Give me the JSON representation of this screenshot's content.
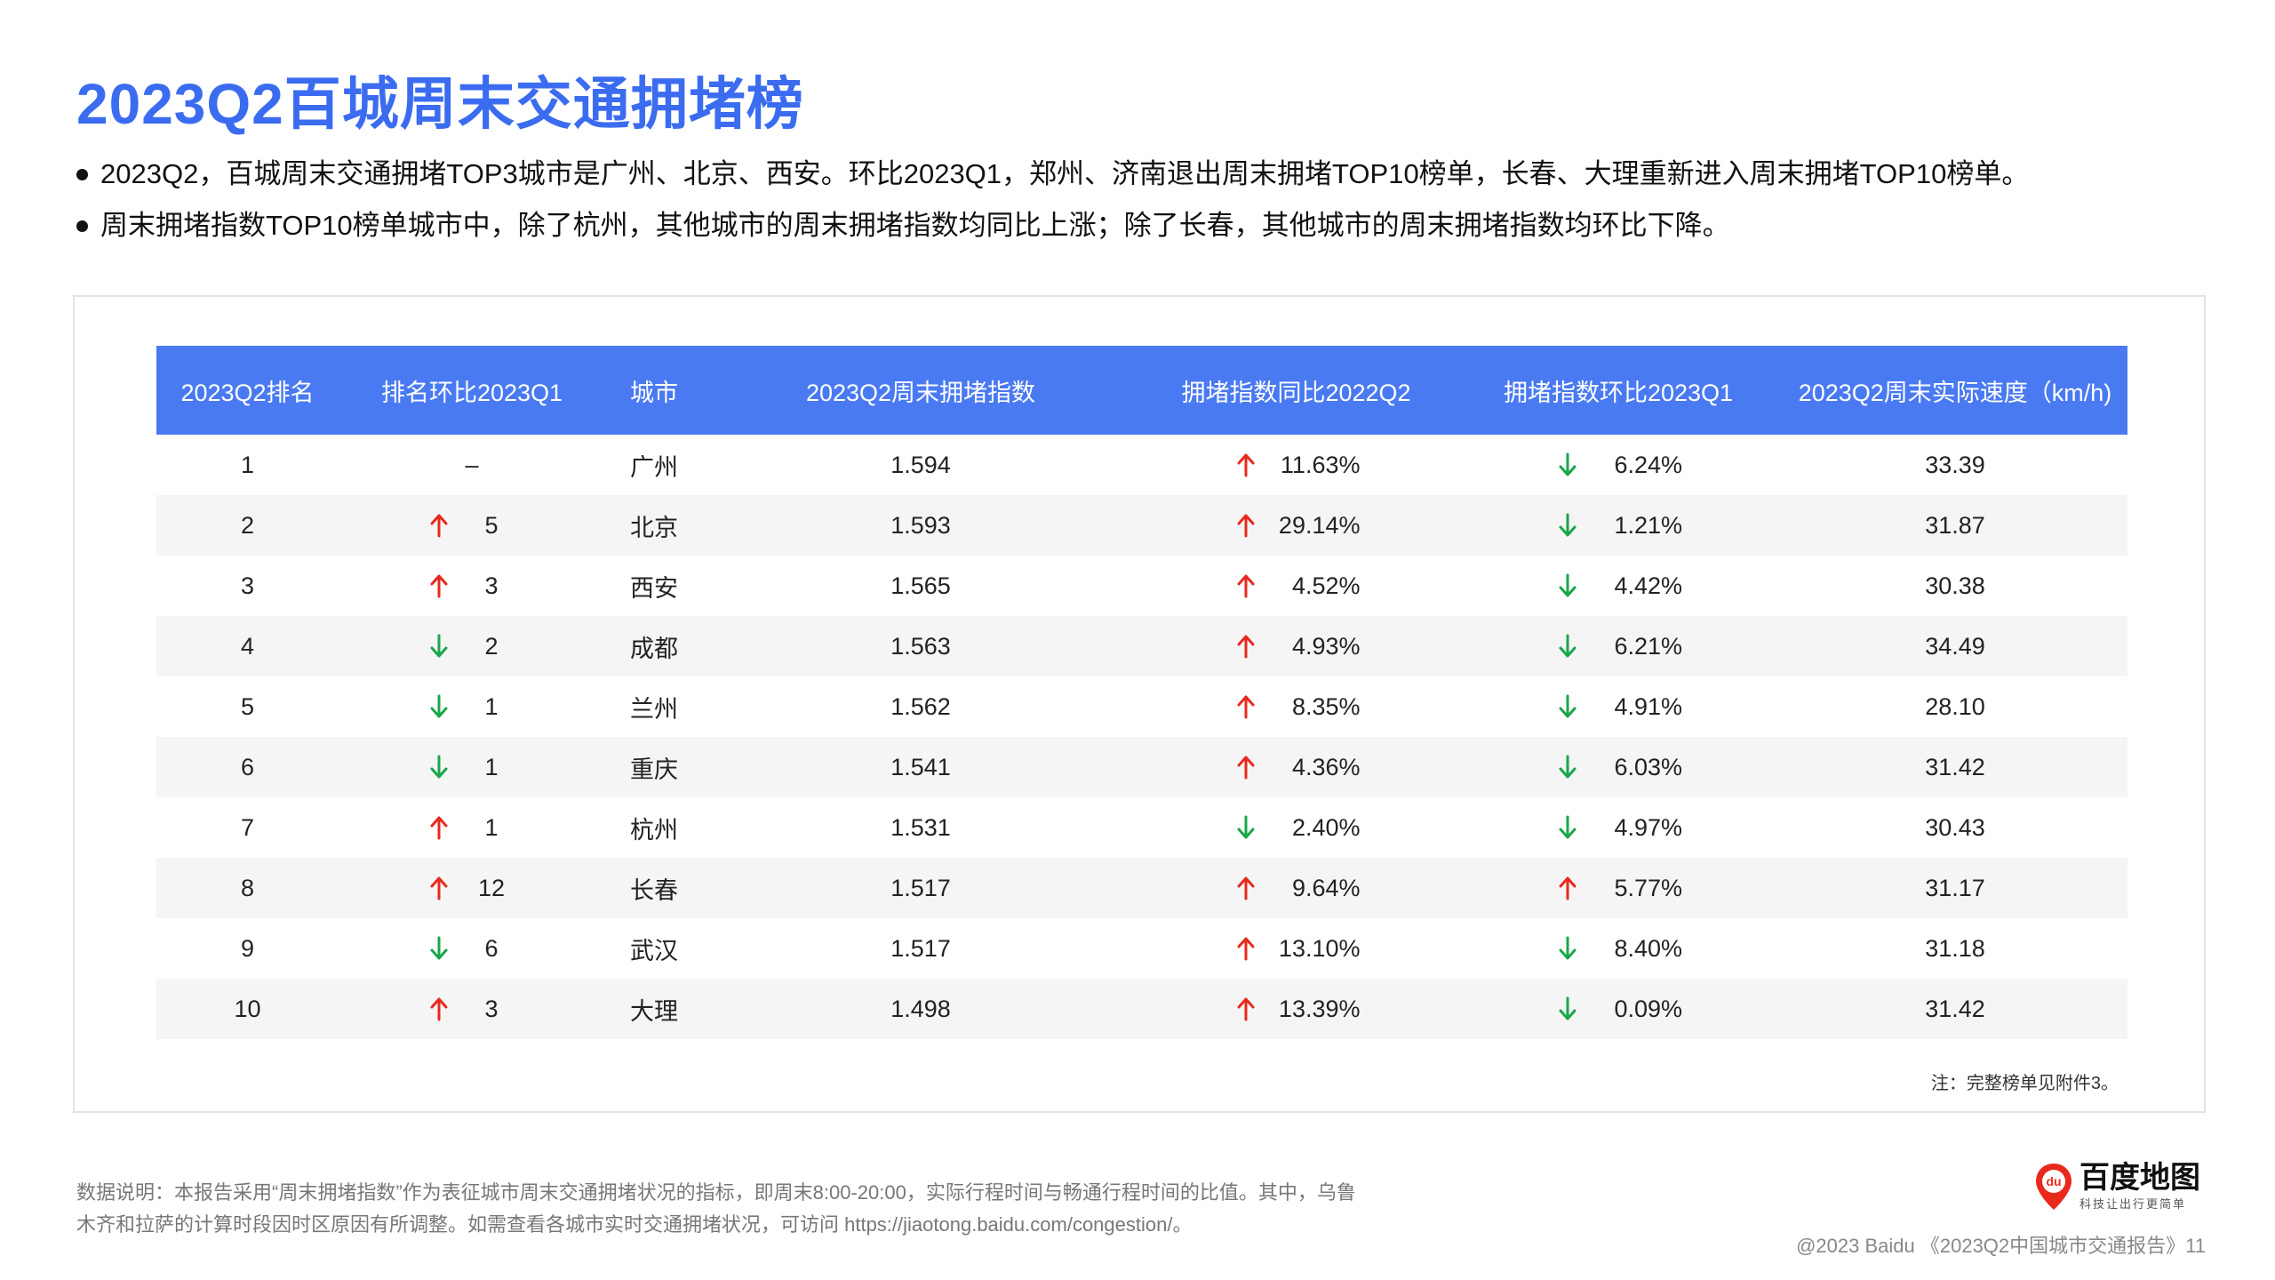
{
  "title": "2023Q2百城周末交通拥堵榜",
  "bullets": [
    "2023Q2，百城周末交通拥堵TOP3城市是广州、北京、西安。环比2023Q1，郑州、济南退出周末拥堵TOP10榜单，长春、大理重新进入周末拥堵TOP10榜单。",
    "周末拥堵指数TOP10榜单城市中，除了杭州，其他城市的周末拥堵指数均同比上涨；除了长春，其他城市的周末拥堵指数均环比下降。"
  ],
  "colors": {
    "accent": "#3b6cf0",
    "header": "#4a7af2",
    "up": "#e8291c",
    "down": "#1aa64a"
  },
  "table": {
    "headers": [
      "2023Q2排名",
      "排名环比2023Q1",
      "城市",
      "2023Q2周末拥堵指数",
      "拥堵指数同比2022Q2",
      "拥堵指数环比2023Q1",
      "2023Q2周末实际速度（km/h)"
    ],
    "rows": [
      {
        "rank": "1",
        "rank_dir": "none",
        "rank_change": "–",
        "city": "广州",
        "index": "1.594",
        "yoy_dir": "up",
        "yoy": "11.63%",
        "qoq_dir": "down",
        "qoq": "6.24%",
        "speed": "33.39"
      },
      {
        "rank": "2",
        "rank_dir": "up",
        "rank_change": "5",
        "city": "北京",
        "index": "1.593",
        "yoy_dir": "up",
        "yoy": "29.14%",
        "qoq_dir": "down",
        "qoq": "1.21%",
        "speed": "31.87"
      },
      {
        "rank": "3",
        "rank_dir": "up",
        "rank_change": "3",
        "city": "西安",
        "index": "1.565",
        "yoy_dir": "up",
        "yoy": "4.52%",
        "qoq_dir": "down",
        "qoq": "4.42%",
        "speed": "30.38"
      },
      {
        "rank": "4",
        "rank_dir": "down",
        "rank_change": "2",
        "city": "成都",
        "index": "1.563",
        "yoy_dir": "up",
        "yoy": "4.93%",
        "qoq_dir": "down",
        "qoq": "6.21%",
        "speed": "34.49"
      },
      {
        "rank": "5",
        "rank_dir": "down",
        "rank_change": "1",
        "city": "兰州",
        "index": "1.562",
        "yoy_dir": "up",
        "yoy": "8.35%",
        "qoq_dir": "down",
        "qoq": "4.91%",
        "speed": "28.10"
      },
      {
        "rank": "6",
        "rank_dir": "down",
        "rank_change": "1",
        "city": "重庆",
        "index": "1.541",
        "yoy_dir": "up",
        "yoy": "4.36%",
        "qoq_dir": "down",
        "qoq": "6.03%",
        "speed": "31.42"
      },
      {
        "rank": "7",
        "rank_dir": "up",
        "rank_change": "1",
        "city": "杭州",
        "index": "1.531",
        "yoy_dir": "down",
        "yoy": "2.40%",
        "qoq_dir": "down",
        "qoq": "4.97%",
        "speed": "30.43"
      },
      {
        "rank": "8",
        "rank_dir": "up",
        "rank_change": "12",
        "city": "长春",
        "index": "1.517",
        "yoy_dir": "up",
        "yoy": "9.64%",
        "qoq_dir": "up",
        "qoq": "5.77%",
        "speed": "31.17"
      },
      {
        "rank": "9",
        "rank_dir": "down",
        "rank_change": "6",
        "city": "武汉",
        "index": "1.517",
        "yoy_dir": "up",
        "yoy": "13.10%",
        "qoq_dir": "down",
        "qoq": "8.40%",
        "speed": "31.18"
      },
      {
        "rank": "10",
        "rank_dir": "up",
        "rank_change": "3",
        "city": "大理",
        "index": "1.498",
        "yoy_dir": "up",
        "yoy": "13.39%",
        "qoq_dir": "down",
        "qoq": "0.09%",
        "speed": "31.42"
      }
    ],
    "note": "注：完整榜单见附件3。"
  },
  "footnote": [
    "数据说明：本报告采用“周末拥堵指数”作为表征城市周末交通拥堵状况的指标，即周末8:00-20:00，实际行程时间与畅通行程时间的比值。其中，乌鲁",
    "木齐和拉萨的计算时段因时区原因有所调整。如需查看各城市实时交通拥堵状况，可访问 https://jiaotong.baidu.com/congestion/。"
  ],
  "logo": {
    "icon": "baidu-map-pin-icon",
    "mark": "du",
    "name": "百度地图",
    "slogan": "科技让出行更简单"
  },
  "copyright": "@2023 Baidu 《2023Q2中国城市交通报告》11"
}
